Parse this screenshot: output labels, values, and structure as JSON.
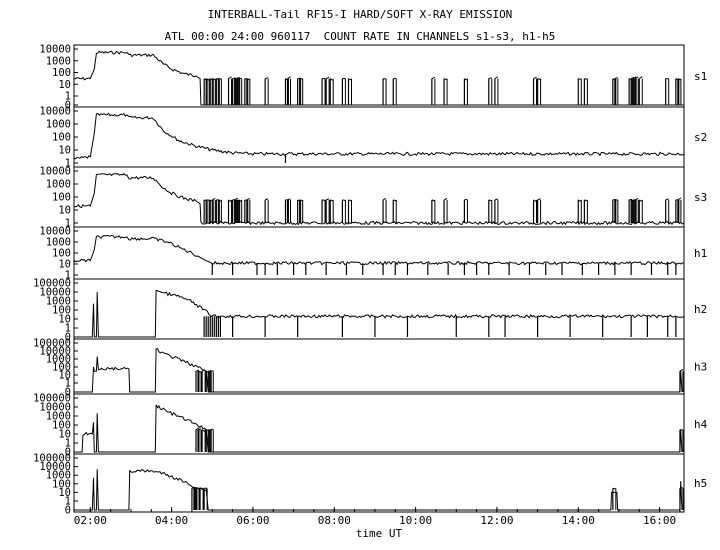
{
  "header": {
    "title": "INTERBALL-Tail RF15-I HARD/SOFT X-RAY EMISSION",
    "subtitle": "ATL 00:00 24:00 960117  COUNT RATE IN CHANNELS s1-s3, h1-h5"
  },
  "chart_data": {
    "type": "line",
    "title": "INTERBALL-Tail RF15-I HARD/SOFT X-RAY EMISSION",
    "subtitle": "ATL 00:00 24:00 960117  COUNT RATE IN CHANNELS s1-s3, h1-h5",
    "xlabel": "time UT",
    "x_unit": "hours UT",
    "x_range": [
      1.6,
      16.6
    ],
    "x_ticks": [
      {
        "value": 2,
        "label": "02:00"
      },
      {
        "value": 4,
        "label": "04:00"
      },
      {
        "value": 6,
        "label": "06:00"
      },
      {
        "value": 8,
        "label": "08:00"
      },
      {
        "value": 10,
        "label": "10:00"
      },
      {
        "value": 12,
        "label": "12:00"
      },
      {
        "value": 14,
        "label": "14:00"
      },
      {
        "value": 16,
        "label": "16:00"
      }
    ],
    "y_scale": "log",
    "grid": false,
    "panels": [
      {
        "channel": "s1",
        "ytick_labels": [
          "10000",
          "1000",
          "100",
          "10",
          "1",
          "0"
        ],
        "series": [
          [
            1.6,
            30
          ],
          [
            2.0,
            30
          ],
          [
            2.1,
            200
          ],
          [
            2.15,
            5000
          ],
          [
            2.9,
            5000
          ],
          [
            2.95,
            3000
          ],
          [
            3.55,
            3000
          ],
          [
            3.8,
            500
          ],
          [
            4.0,
            200
          ],
          [
            4.3,
            80
          ],
          [
            4.6,
            50
          ],
          [
            4.7,
            30
          ],
          [
            4.72,
            0
          ],
          [
            16.6,
            0
          ]
        ],
        "bursts": [
          4.8,
          4.85,
          4.95,
          5.0,
          5.1,
          5.15,
          5.4,
          5.5,
          5.55,
          5.6,
          5.65,
          5.8,
          5.85,
          6.3,
          6.8,
          6.85,
          7.1,
          7.15,
          7.7,
          7.8,
          7.9,
          8.2,
          8.35,
          9.2,
          9.45,
          10.4,
          10.7,
          11.2,
          11.8,
          11.95,
          12.9,
          13.0,
          14.0,
          14.15,
          14.85,
          14.9,
          15.25,
          15.3,
          15.35,
          15.4,
          15.5,
          16.15,
          16.4,
          16.45
        ]
      },
      {
        "channel": "s2",
        "ytick_labels": [
          "10000",
          "1000",
          "100",
          "10",
          "1"
        ],
        "series": [
          [
            1.6,
            2
          ],
          [
            2.0,
            3
          ],
          [
            2.1,
            200
          ],
          [
            2.15,
            5000
          ],
          [
            2.9,
            5000
          ],
          [
            2.95,
            3000
          ],
          [
            3.55,
            3000
          ],
          [
            3.8,
            300
          ],
          [
            4.2,
            50
          ],
          [
            4.6,
            20
          ],
          [
            5.0,
            10
          ],
          [
            5.5,
            6
          ],
          [
            6.0,
            5
          ],
          [
            16.6,
            5
          ]
        ],
        "bursts": [
          6.8
        ]
      },
      {
        "channel": "s3",
        "ytick_labels": [
          "10000",
          "1000",
          "100",
          "10",
          "1"
        ],
        "series": [
          [
            1.6,
            20
          ],
          [
            2.0,
            20
          ],
          [
            2.1,
            200
          ],
          [
            2.15,
            5000
          ],
          [
            2.9,
            5000
          ],
          [
            2.95,
            3000
          ],
          [
            3.55,
            3000
          ],
          [
            3.8,
            500
          ],
          [
            4.0,
            200
          ],
          [
            4.3,
            80
          ],
          [
            4.6,
            50
          ],
          [
            4.7,
            30
          ],
          [
            4.72,
            1
          ],
          [
            16.6,
            1
          ]
        ],
        "bursts": [
          4.8,
          4.85,
          4.95,
          5.0,
          5.1,
          5.15,
          5.4,
          5.5,
          5.55,
          5.6,
          5.65,
          5.8,
          5.85,
          6.3,
          6.8,
          6.85,
          7.1,
          7.15,
          7.7,
          7.8,
          7.9,
          8.2,
          8.35,
          9.2,
          9.45,
          10.4,
          10.7,
          11.2,
          11.8,
          11.95,
          12.9,
          13.0,
          14.0,
          14.15,
          14.85,
          14.9,
          15.25,
          15.3,
          15.35,
          15.4,
          15.5,
          16.15,
          16.4,
          16.45
        ]
      },
      {
        "channel": "h1",
        "ytick_labels": [
          "10000",
          "1000",
          "100",
          "10",
          "1"
        ],
        "series": [
          [
            1.6,
            20
          ],
          [
            2.0,
            20
          ],
          [
            2.1,
            200
          ],
          [
            2.15,
            3000
          ],
          [
            2.9,
            3000
          ],
          [
            2.95,
            2000
          ],
          [
            3.55,
            2000
          ],
          [
            3.9,
            1000
          ],
          [
            4.2,
            300
          ],
          [
            4.5,
            100
          ],
          [
            4.7,
            40
          ],
          [
            4.85,
            20
          ],
          [
            5.0,
            12
          ],
          [
            16.6,
            12
          ]
        ],
        "bursts": [
          5.0,
          5.5,
          6.1,
          6.3,
          6.6,
          7.0,
          7.3,
          7.8,
          8.3,
          8.7,
          9.2,
          9.5,
          9.8,
          10.3,
          10.8,
          11.2,
          11.5,
          11.8,
          12.3,
          12.8,
          13.2,
          13.6,
          14.1,
          14.5,
          14.9,
          15.3,
          15.8,
          16.2,
          16.4
        ]
      },
      {
        "channel": "h2",
        "ytick_labels": [
          "100000",
          "10000",
          "1000",
          "100",
          "10",
          "1",
          "0"
        ],
        "series": [
          [
            1.6,
            0
          ],
          [
            2.05,
            0
          ],
          [
            2.08,
            500
          ],
          [
            2.1,
            0
          ],
          [
            2.15,
            0
          ],
          [
            2.17,
            10000
          ],
          [
            2.2,
            0
          ],
          [
            3.6,
            0
          ],
          [
            3.62,
            15000
          ],
          [
            3.8,
            8000
          ],
          [
            4.2,
            3000
          ],
          [
            4.5,
            800
          ],
          [
            4.8,
            100
          ],
          [
            5.0,
            20
          ],
          [
            16.6,
            20
          ]
        ],
        "bursts": [
          4.8,
          4.85,
          4.9,
          4.95,
          5.0,
          5.05,
          5.1,
          5.15,
          5.2,
          5.5,
          6.3,
          7.1,
          8.2,
          9.0,
          9.8,
          11.0,
          11.8,
          12.2,
          13.0,
          13.8,
          14.6,
          15.3,
          15.7,
          16.2,
          16.4
        ]
      },
      {
        "channel": "h3",
        "ytick_labels": [
          "100000",
          "10000",
          "1000",
          "100",
          "10",
          "1",
          "0"
        ],
        "series": [
          [
            1.6,
            0
          ],
          [
            2.05,
            0
          ],
          [
            2.08,
            100
          ],
          [
            2.1,
            30
          ],
          [
            2.15,
            30
          ],
          [
            2.17,
            2000
          ],
          [
            2.2,
            60
          ],
          [
            2.95,
            60
          ],
          [
            2.97,
            0
          ],
          [
            3.6,
            0
          ],
          [
            3.62,
            15000
          ],
          [
            3.9,
            3000
          ],
          [
            4.2,
            800
          ],
          [
            4.5,
            200
          ],
          [
            4.85,
            30
          ],
          [
            4.9,
            0
          ],
          [
            16.5,
            0
          ],
          [
            16.52,
            30
          ],
          [
            16.55,
            0
          ]
        ],
        "bursts": [
          4.6,
          4.65,
          4.75,
          4.85,
          4.9,
          4.95,
          16.5
        ]
      },
      {
        "channel": "h4",
        "ytick_labels": [
          "100000",
          "10000",
          "1000",
          "100",
          "10",
          "1",
          "0"
        ],
        "series": [
          [
            1.6,
            0
          ],
          [
            1.8,
            0
          ],
          [
            1.82,
            10
          ],
          [
            2.05,
            10
          ],
          [
            2.08,
            200
          ],
          [
            2.1,
            0
          ],
          [
            2.15,
            0
          ],
          [
            2.17,
            2000
          ],
          [
            2.2,
            0
          ],
          [
            3.6,
            0
          ],
          [
            3.62,
            15000
          ],
          [
            3.9,
            3000
          ],
          [
            4.2,
            800
          ],
          [
            4.5,
            200
          ],
          [
            4.85,
            30
          ],
          [
            4.9,
            0
          ],
          [
            16.5,
            0
          ],
          [
            16.52,
            30
          ],
          [
            16.55,
            0
          ]
        ],
        "bursts": [
          4.6,
          4.65,
          4.75,
          4.85,
          4.9,
          4.95,
          16.5
        ]
      },
      {
        "channel": "h5",
        "ytick_labels": [
          "100000",
          "10000",
          "1000",
          "100",
          "10",
          "1",
          "0"
        ],
        "series": [
          [
            1.6,
            0
          ],
          [
            2.05,
            0
          ],
          [
            2.08,
            500
          ],
          [
            2.1,
            0
          ],
          [
            2.15,
            0
          ],
          [
            2.17,
            5000
          ],
          [
            2.2,
            0
          ],
          [
            2.95,
            0
          ],
          [
            2.97,
            3000
          ],
          [
            3.6,
            3000
          ],
          [
            3.9,
            1000
          ],
          [
            4.2,
            300
          ],
          [
            4.5,
            60
          ],
          [
            4.85,
            20
          ],
          [
            4.9,
            0
          ],
          [
            14.8,
            0
          ],
          [
            14.82,
            10
          ],
          [
            14.95,
            10
          ],
          [
            14.97,
            0
          ],
          [
            16.5,
            0
          ],
          [
            16.52,
            200
          ],
          [
            16.55,
            0
          ]
        ],
        "bursts": [
          4.5,
          4.55,
          4.6,
          4.7,
          4.8,
          14.85,
          16.5
        ]
      }
    ]
  }
}
